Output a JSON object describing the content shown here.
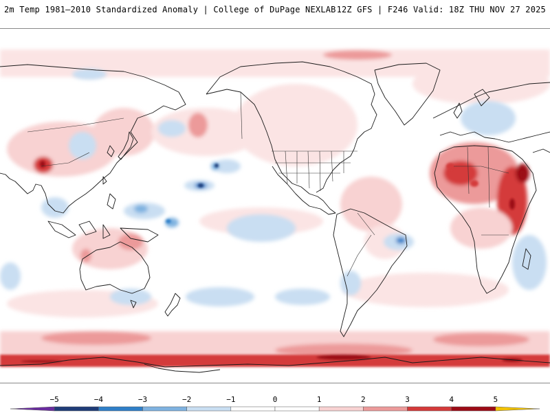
{
  "header": {
    "product": "2m Temp 1981–2010 Standardized Anomaly | College of DuPage NEXLAB",
    "run": "12Z GFS | F246 Valid: 18Z THU NOV 27 2025"
  },
  "map": {
    "projection": "global-cylindrical",
    "center_longitude": 180,
    "variable": "2m temperature standardized anomaly",
    "colors": {
      "ocean_bg": "#ffffff",
      "coast": "#1a1a1a",
      "border": "#333333"
    }
  },
  "legend": {
    "ticks": [
      "−5",
      "−4",
      "−3",
      "−2",
      "−1",
      "0",
      "1",
      "2",
      "3",
      "4",
      "5"
    ],
    "bins": [
      {
        "from": -6,
        "to": -5,
        "color": "#6a2ca0"
      },
      {
        "from": -5,
        "to": -4,
        "color": "#1f3c78"
      },
      {
        "from": -4,
        "to": -3,
        "color": "#2f7fc8"
      },
      {
        "from": -3,
        "to": -2,
        "color": "#7fb2e0"
      },
      {
        "from": -2,
        "to": -1,
        "color": "#c9def2"
      },
      {
        "from": -1,
        "to": 0,
        "color": "#ffffff"
      },
      {
        "from": 0,
        "to": 1,
        "color": "#ffffff"
      },
      {
        "from": 1,
        "to": 2,
        "color": "#f8d2d2"
      },
      {
        "from": 2,
        "to": 3,
        "color": "#ec9a9a"
      },
      {
        "from": 3,
        "to": 4,
        "color": "#d43a3a"
      },
      {
        "from": 4,
        "to": 5,
        "color": "#9c0b16"
      },
      {
        "from": 5,
        "to": 6,
        "color": "#f2c200"
      }
    ]
  }
}
